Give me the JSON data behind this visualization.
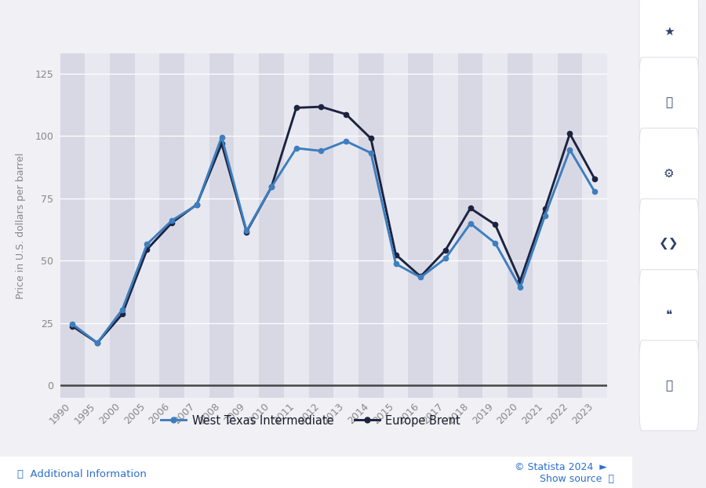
{
  "years": [
    1990,
    1995,
    2000,
    2005,
    2006,
    2007,
    2008,
    2009,
    2010,
    2011,
    2012,
    2013,
    2014,
    2015,
    2016,
    2017,
    2018,
    2019,
    2020,
    2021,
    2022,
    2023
  ],
  "wti": [
    24.5,
    17.0,
    30.3,
    56.6,
    66.1,
    72.3,
    99.6,
    61.9,
    79.5,
    95.1,
    94.0,
    97.9,
    93.2,
    48.7,
    43.3,
    50.9,
    64.9,
    57.0,
    39.2,
    68.1,
    94.5,
    77.6
  ],
  "brent": [
    23.7,
    17.0,
    28.5,
    54.5,
    65.2,
    72.5,
    96.9,
    61.5,
    79.5,
    111.3,
    111.7,
    108.7,
    99.0,
    52.4,
    43.6,
    54.2,
    71.0,
    64.4,
    41.8,
    70.7,
    100.9,
    82.7
  ],
  "wti_color": "#3d7ebf",
  "brent_color": "#1c2340",
  "fig_bg": "#f0f0f5",
  "plot_bg": "#e8e8f0",
  "stripe_dark": "#d8d8e4",
  "grid_color": "#ffffff",
  "zero_line_color": "#444444",
  "tick_color": "#888888",
  "ylabel": "Price in U.S. dollars per barrel",
  "yticks": [
    0,
    25,
    50,
    75,
    100,
    125
  ],
  "legend_wti": "West Texas Intermediate",
  "legend_brent": "Europe Brent",
  "footer_left": "ⓘ  Additional Information",
  "footer_right_1": "© Statista 2024  ►",
  "footer_right_2": "Show source  ⓘ",
  "icon_color": "#2c3e6b",
  "icon_bg": "#ffffff",
  "icon_border": "#e0e0e8"
}
